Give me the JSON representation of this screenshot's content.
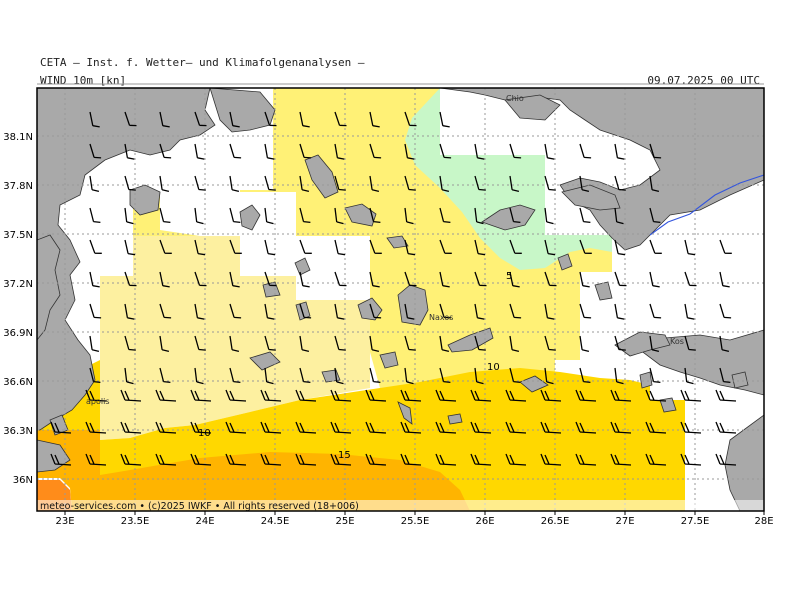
{
  "header": {
    "institute": "CETA — Inst. f. Wetter— und Klimafolgenanalysen —",
    "field": "WIND 10m [kn]",
    "valid_time": "09.07.2025 00 UTC"
  },
  "footer": "meteo-services.com • (c)2025 IWKF • All rights reserved (18+006)",
  "axes": {
    "lon_ticks": [
      "23E",
      "23.5E",
      "24E",
      "24.5E",
      "25E",
      "25.5E",
      "26E",
      "26.5E",
      "27E",
      "27.5E",
      "28E"
    ],
    "lat_ticks": [
      "38.1N",
      "37.8N",
      "37.5N",
      "37.2N",
      "36.9N",
      "36.6N",
      "36.3N",
      "36N"
    ]
  },
  "places": [
    "Chio",
    "Naxos",
    "Kos",
    "apolis"
  ],
  "contour_labels": [
    "5",
    "10",
    "10",
    "15"
  ],
  "colors": {
    "land": "#a9a9a9",
    "calm": "#ffffff",
    "wind_5_10": "#fff176",
    "wind_0_5_pale": "#fdf0a0",
    "wind_10_15": "#ffd800",
    "wind_15_20": "#ffb400",
    "wind_20_plus": "#ff8c1a",
    "green_zone": "#c8f7c8",
    "river": "#3355dd"
  }
}
